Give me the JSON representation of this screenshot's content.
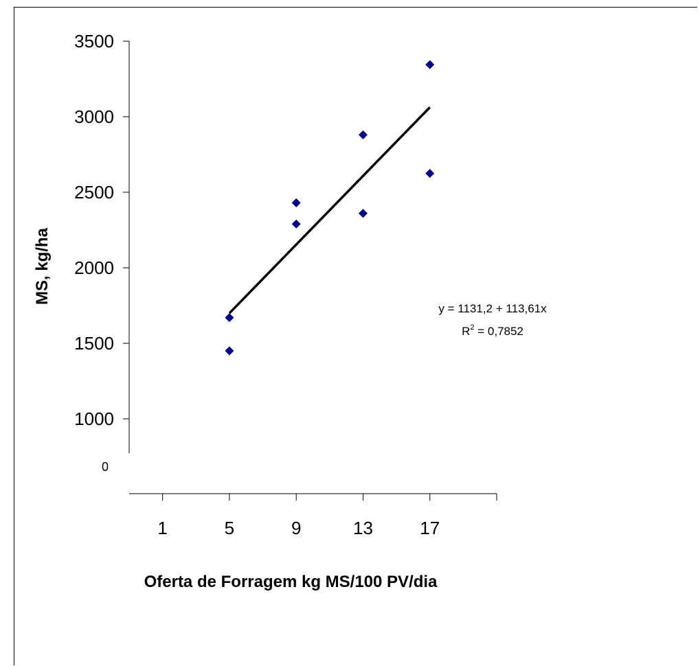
{
  "chart_data": {
    "type": "scatter",
    "title": "",
    "xlabel": "Oferta de Forragem kg MS/100 PV/dia",
    "ylabel": "MS, kg/ha",
    "x_ticks": [
      "1",
      "5",
      "9",
      "13",
      "17"
    ],
    "y_ticks": [
      "1000",
      "1500",
      "2000",
      "2500",
      "3000",
      "3500"
    ],
    "y_origin_label": "0",
    "xlim": [
      -1,
      21
    ],
    "ylim": [
      1000,
      3500
    ],
    "series": [
      {
        "color": "#000080",
        "marker": "diamond",
        "points": [
          {
            "x": 5,
            "y": 1450
          },
          {
            "x": 5,
            "y": 1670
          },
          {
            "x": 9,
            "y": 2290
          },
          {
            "x": 9,
            "y": 2430
          },
          {
            "x": 13,
            "y": 2360
          },
          {
            "x": 13,
            "y": 2880
          },
          {
            "x": 17,
            "y": 2625
          },
          {
            "x": 17,
            "y": 3345
          }
        ]
      }
    ],
    "trendline": {
      "intercept": 1131.2,
      "slope": 113.61,
      "x_range": [
        5,
        17
      ],
      "color": "#000000"
    },
    "equation_text": "y = 1131,2 + 113,61x",
    "r2_prefix": "R",
    "r2_sup": "2",
    "r2_suffix": " = 0,7852",
    "grid": false,
    "legend": "none"
  }
}
